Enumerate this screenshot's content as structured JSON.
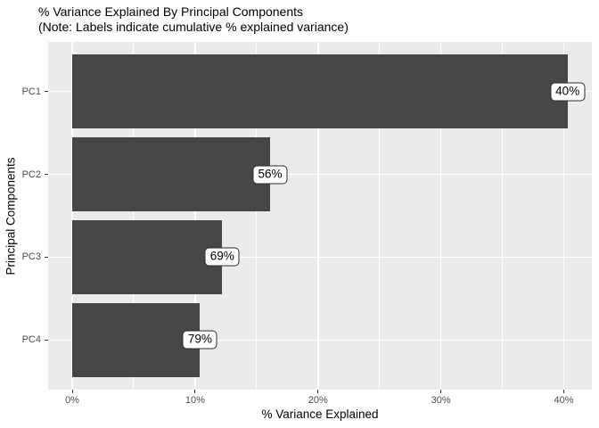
{
  "chart_data": {
    "type": "bar",
    "orientation": "horizontal",
    "title": "% Variance Explained By Principal Components",
    "subtitle": "(Note: Labels indicate cumulative % explained variance)",
    "categories": [
      "PC1",
      "PC2",
      "PC3",
      "PC4"
    ],
    "values": [
      40.3,
      16.1,
      12.2,
      10.4
    ],
    "bar_labels": [
      "40%",
      "56%",
      "69%",
      "79%"
    ],
    "xlabel": "% Variance Explained",
    "ylabel": "Principal Components",
    "x_ticks": [
      "0%",
      "10%",
      "20%",
      "30%",
      "40%"
    ],
    "x_tick_values": [
      0,
      10,
      20,
      30,
      40
    ],
    "x_minor_tick_values": [
      5,
      15,
      25,
      35
    ],
    "xlim": [
      -1.96,
      42.28
    ],
    "grid": "white major vertical/horizontal gridlines with minor vertical gridlines, ggplot style",
    "legend": "none",
    "colors": {
      "bar": "#464646",
      "panel_background": "#EBEBEB",
      "gridline": "#FFFFFF",
      "axis_text": "#4D4D4D",
      "tick_mark": "#333333",
      "title_text": "#000000",
      "label_box_bg": "#FFFFFF",
      "label_box_border": "#2B2B2B"
    }
  }
}
